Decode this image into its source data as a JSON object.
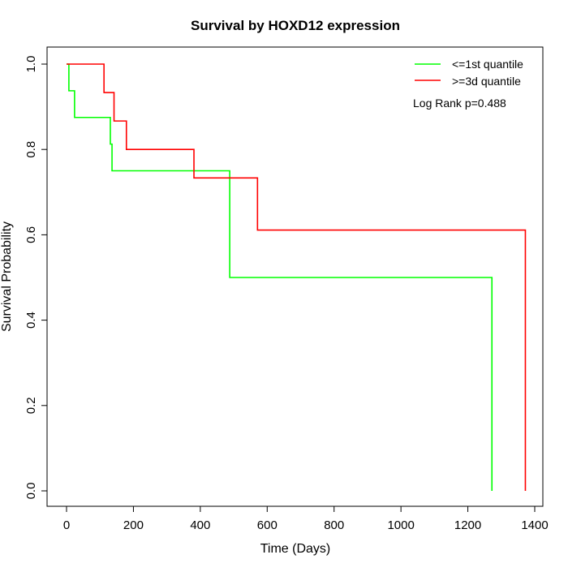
{
  "chart_data": {
    "type": "line",
    "subtype": "kaplan-meier step",
    "title": "Survival by HOXD12 expression",
    "xlabel": "Time (Days)",
    "ylabel": "Survival Probability",
    "xlim": [
      0,
      1400
    ],
    "ylim": [
      0,
      1
    ],
    "xticks": [
      "0",
      "200",
      "400",
      "600",
      "800",
      "1000",
      "1200",
      "1400"
    ],
    "xtick_values": [
      0,
      200,
      400,
      600,
      800,
      1000,
      1200,
      1400
    ],
    "yticks": [
      "0.0",
      "0.2",
      "0.4",
      "0.6",
      "0.8",
      "1.0"
    ],
    "ytick_values": [
      0,
      0.2,
      0.4,
      0.6,
      0.8,
      1.0
    ],
    "grid": false,
    "legend_position": "top-right",
    "annotation": "Log Rank p=0.488",
    "series": [
      {
        "name": "<=1st quantile",
        "color": "#00ff00",
        "x": [
          0,
          7,
          24,
          131,
          136,
          488,
          1272
        ],
        "y": [
          1.0,
          0.9375,
          0.875,
          0.8125,
          0.75,
          0.5,
          0.0
        ]
      },
      {
        "name": ">=3d quantile",
        "color": "#ff0000",
        "x": [
          0,
          112,
          142,
          179,
          381,
          571,
          1372
        ],
        "y": [
          1.0,
          0.9333,
          0.8667,
          0.8,
          0.7333,
          0.6111,
          0.0
        ]
      }
    ]
  }
}
